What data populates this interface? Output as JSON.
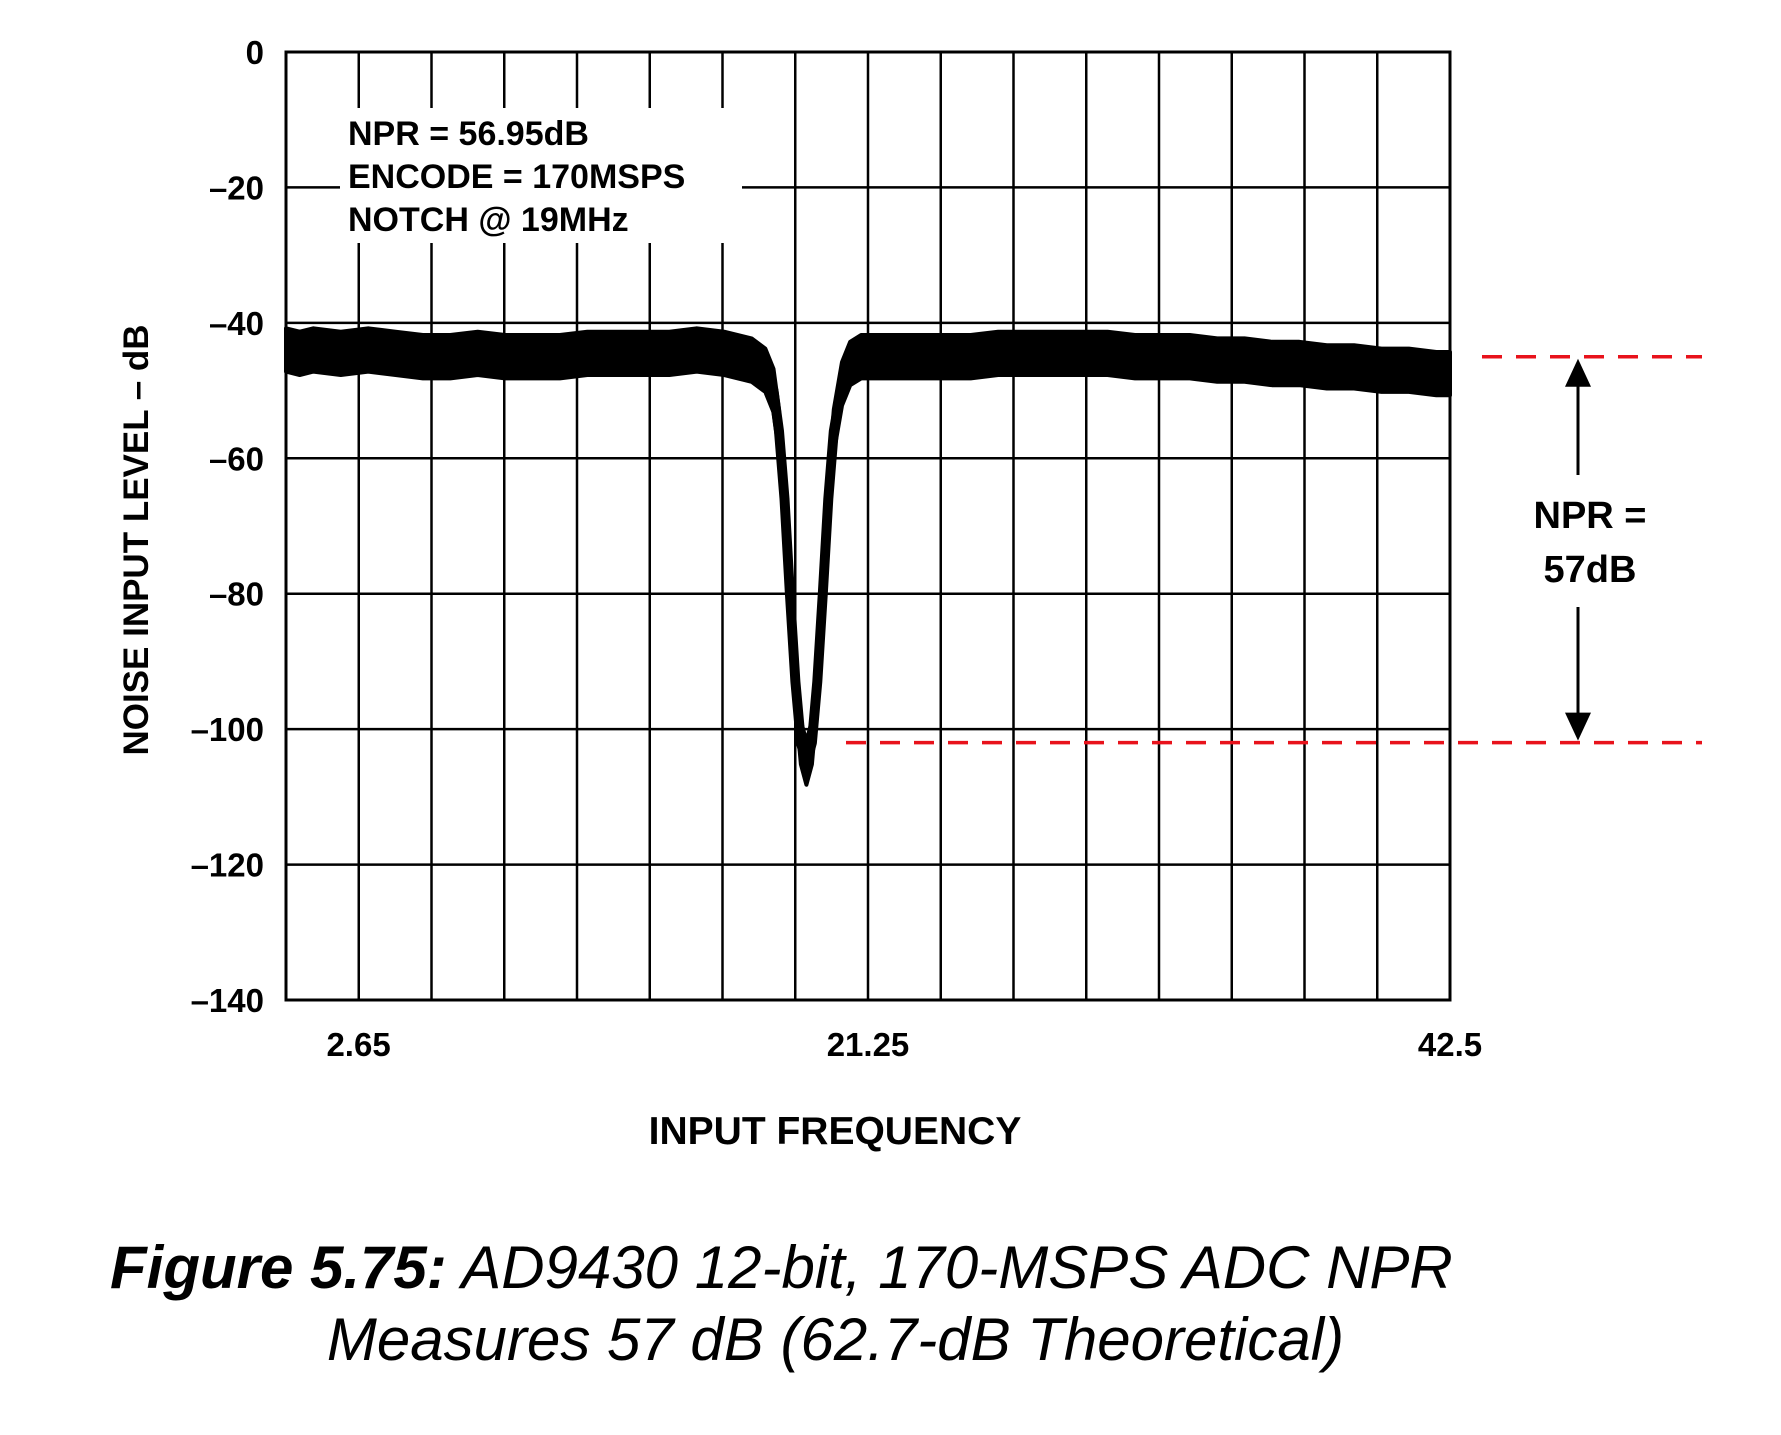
{
  "chart_data": {
    "type": "line",
    "xlabel": "INPUT FREQUENCY",
    "ylabel": "NOISE INPUT LEVEL – dB",
    "ylim": [
      -140,
      0
    ],
    "y_ticks": [
      {
        "value": 0,
        "label": "0"
      },
      {
        "value": -20,
        "label": "–20"
      },
      {
        "value": -40,
        "label": "–40"
      },
      {
        "value": -60,
        "label": "–60"
      },
      {
        "value": -80,
        "label": "–80"
      },
      {
        "value": -100,
        "label": "–100"
      },
      {
        "value": -120,
        "label": "–120"
      },
      {
        "value": -140,
        "label": "–140"
      }
    ],
    "x_tick_labels": [
      {
        "value": 2.65,
        "label": "2.65"
      },
      {
        "value": 21.25,
        "label": "21.25"
      },
      {
        "value": 42.5,
        "label": "42.5"
      }
    ],
    "xlim": [
      0,
      42.5
    ],
    "grid": true,
    "x_gridlines": 16,
    "series": [
      {
        "x": [
          0,
          0.5,
          1,
          2,
          3,
          4,
          5,
          6,
          7,
          8,
          9,
          10,
          11,
          12,
          13,
          14,
          15,
          16,
          17,
          17.5,
          17.8,
          18.0,
          18.2,
          18.4,
          18.6,
          18.8,
          19.0,
          19.2,
          19.4,
          19.6,
          19.8,
          20.0,
          20.3,
          20.6,
          21.0,
          22,
          23,
          24,
          25,
          26,
          27,
          28,
          29,
          30,
          31,
          32,
          33,
          34,
          35,
          36,
          37,
          38,
          39,
          40,
          41,
          42,
          42.5
        ],
        "values": [
          -44,
          -44.5,
          -44,
          -44.5,
          -44,
          -44.5,
          -45,
          -45,
          -44.5,
          -45,
          -45,
          -45,
          -44.5,
          -44.5,
          -44.5,
          -44.5,
          -44,
          -44.5,
          -45.5,
          -47,
          -50,
          -56,
          -66,
          -80,
          -93,
          -102,
          -105,
          -102,
          -93,
          -80,
          -66,
          -56,
          -49,
          -46,
          -45,
          -45,
          -45,
          -45,
          -45,
          -44.5,
          -44.5,
          -44.5,
          -44.5,
          -44.5,
          -45,
          -45,
          -45,
          -45.5,
          -45.5,
          -46,
          -46,
          -46.5,
          -46.5,
          -47,
          -47,
          -47.5,
          -47.5
        ]
      }
    ],
    "annotations": {
      "npr": "NPR = 56.95dB",
      "encode": "ENCODE = 170MSPS",
      "notch": "NOTCH @ 19MHz",
      "npr_bracket_line1": "NPR =",
      "npr_bracket_line2": "57dB",
      "npr_top_level": -45,
      "npr_bottom_level": -102
    },
    "colors": {
      "trace": "#000000",
      "grid": "#000000",
      "dashed_reference": "#e8121b"
    }
  },
  "caption": {
    "figure_label": "Figure 5.75:",
    "line1_text": " AD9430 12-bit, 170-MSPS ADC NPR",
    "line2_text": "Measures 57 dB (62.7-dB Theoretical)"
  }
}
